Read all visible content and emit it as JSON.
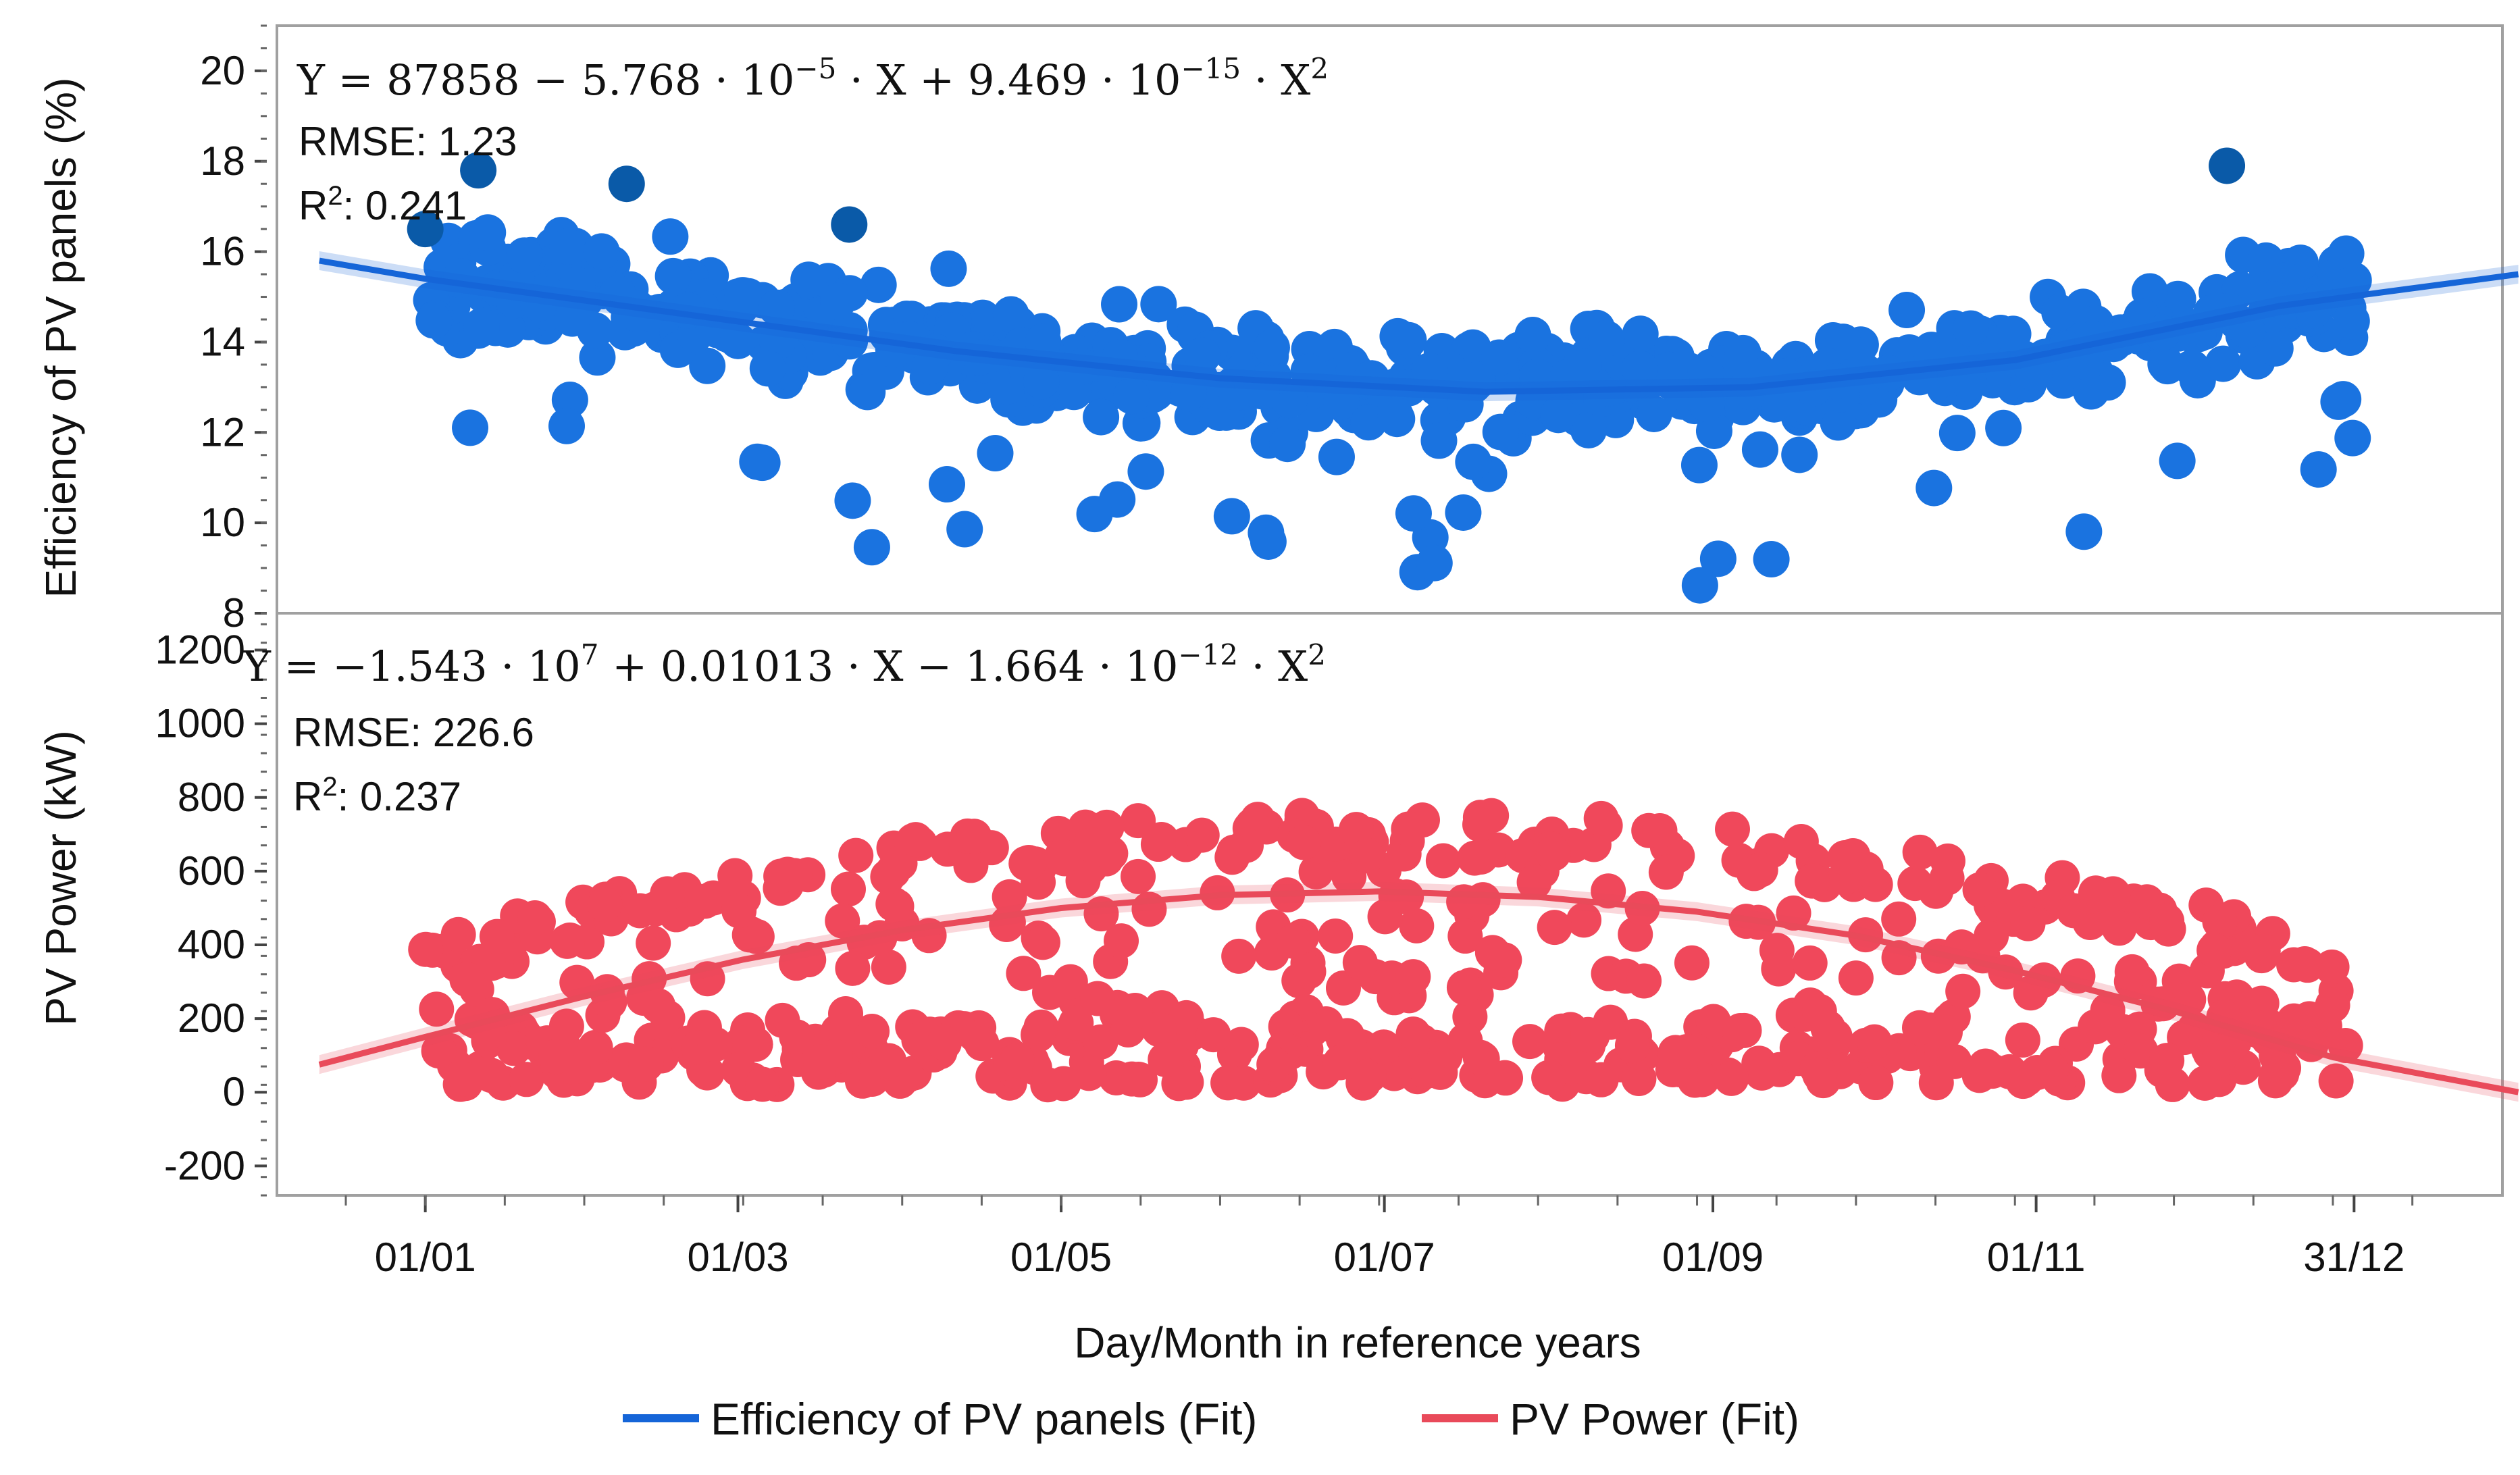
{
  "chart_data": {
    "type": "scatter",
    "x_ticks": [
      "01/01",
      "01/03",
      "01/05",
      "01/07",
      "01/09",
      "01/11",
      "31/12"
    ],
    "x_axis_label": "Day/Month in reference years",
    "xlim_day_of_year": [
      -28,
      392
    ],
    "panels": [
      {
        "name": "efficiency",
        "ylabel": "Efficiency of PV panels (%)",
        "ylim": [
          8,
          21
        ],
        "y_ticks": [
          "20",
          "18",
          "16",
          "14",
          "12",
          "10",
          "8"
        ],
        "equation_main": "Y = 87858 − 5.768 · 10",
        "equation_exp1": "−5",
        "equation_mid": " · X + 9.469 · 10",
        "equation_exp2": "−15",
        "equation_end": " · X",
        "equation_exp3": "2",
        "rmse": "RMSE: 1.23",
        "r2_prefix": "R",
        "r2_exp": "2",
        "r2_value": ": 0.241",
        "fit_color": "#1565d8",
        "point_color": "#1a73e0",
        "fit_points": [
          [
            -20,
            15.8
          ],
          [
            0,
            15.4
          ],
          [
            50,
            14.6
          ],
          [
            100,
            13.8
          ],
          [
            150,
            13.2
          ],
          [
            200,
            12.9
          ],
          [
            250,
            13.0
          ],
          [
            300,
            13.6
          ],
          [
            350,
            14.8
          ],
          [
            395,
            15.5
          ]
        ],
        "highlight_points": [
          [
            0,
            16.5
          ],
          [
            10,
            17.8
          ],
          [
            38,
            17.5
          ],
          [
            80,
            16.6
          ],
          [
            340,
            17.9
          ]
        ]
      },
      {
        "name": "power",
        "ylabel": "PV Power (kW)",
        "ylim": [
          -280,
          1300
        ],
        "y_ticks": [
          "1200",
          "1000",
          "800",
          "600",
          "400",
          "200",
          "0",
          "-200"
        ],
        "equation_main": "Y = −1.543 · 10",
        "equation_exp1": "7",
        "equation_mid": " + 0.01013 · X − 1.664 · 10",
        "equation_exp2": "−12",
        "equation_end": " · X",
        "equation_exp3": "2",
        "rmse": "RMSE: 226.6",
        "r2_prefix": "R",
        "r2_exp": "2",
        "r2_value": ": 0.237",
        "fit_color": "#e94a5a",
        "point_color": "#f0485b",
        "fit_points": [
          [
            -20,
            75
          ],
          [
            0,
            150
          ],
          [
            30,
            260
          ],
          [
            60,
            360
          ],
          [
            90,
            440
          ],
          [
            120,
            500
          ],
          [
            150,
            535
          ],
          [
            180,
            545
          ],
          [
            210,
            530
          ],
          [
            240,
            490
          ],
          [
            270,
            425
          ],
          [
            300,
            330
          ],
          [
            330,
            220
          ],
          [
            360,
            95
          ],
          [
            395,
            0
          ]
        ]
      }
    ],
    "legend": [
      {
        "label": "Efficiency of PV panels (Fit)",
        "color": "#1565d8"
      },
      {
        "label": "PV Power (Fit)",
        "color": "#e94a5a"
      }
    ]
  }
}
